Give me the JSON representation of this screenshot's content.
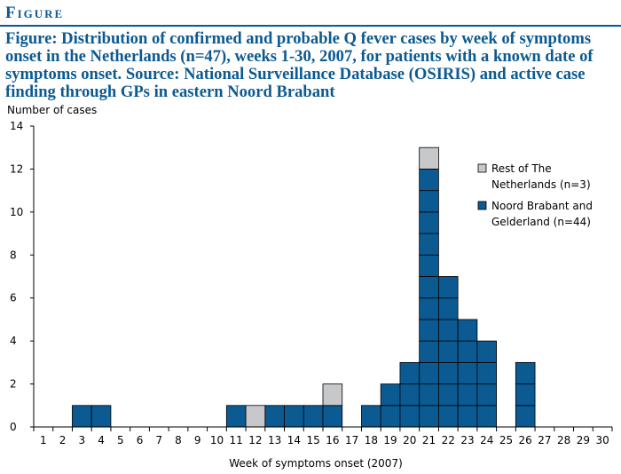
{
  "header": {
    "label": "Figure"
  },
  "title": "Figure: Distribution of confirmed and probable Q fever cases by week of symptoms onset in the Netherlands (n=47), weeks 1-30, 2007, for patients with a known date of symptoms onset. Source: National Surveillance Database (OSIRIS) and active case finding through GPs in eastern Noord Brabant",
  "colors": {
    "accent": "#0b5a92",
    "bar_blue": "#0b5a92",
    "bar_gray": "#c7c8ca"
  },
  "chart_data": {
    "type": "bar",
    "stacked": true,
    "ylabel": "Number of cases",
    "xlabel": "Week of symptoms onset (2007)",
    "ylim": [
      0,
      14
    ],
    "yticks": [
      0,
      2,
      4,
      6,
      8,
      10,
      12,
      14
    ],
    "categories": [
      "1",
      "2",
      "3",
      "4",
      "5",
      "6",
      "7",
      "8",
      "9",
      "10",
      "11",
      "12",
      "13",
      "14",
      "15",
      "16",
      "17",
      "18",
      "19",
      "20",
      "21",
      "22",
      "23",
      "24",
      "25",
      "26",
      "27",
      "28",
      "29",
      "30"
    ],
    "series": [
      {
        "name": "Noord Brabant and Gelderland (n=44)",
        "color": "#0b5a92",
        "values": [
          0,
          0,
          1,
          1,
          0,
          0,
          0,
          0,
          0,
          0,
          1,
          0,
          1,
          1,
          1,
          1,
          0,
          1,
          2,
          3,
          12,
          7,
          5,
          4,
          0,
          3,
          0,
          0,
          0,
          0
        ]
      },
      {
        "name": "Rest of The Netherlands (n=3)",
        "color": "#c7c8ca",
        "values": [
          0,
          0,
          0,
          0,
          0,
          0,
          0,
          0,
          0,
          0,
          0,
          1,
          0,
          0,
          0,
          1,
          0,
          0,
          0,
          0,
          1,
          0,
          0,
          0,
          0,
          0,
          0,
          0,
          0,
          0
        ]
      }
    ],
    "legend": {
      "placement": "right",
      "items": [
        {
          "lines": [
            "Rest of The",
            "Netherlands (n=3)"
          ],
          "color": "#c7c8ca"
        },
        {
          "lines": [
            "Noord Brabant and",
            "Gelderland (n=44)"
          ],
          "color": "#0b5a92"
        }
      ]
    }
  }
}
